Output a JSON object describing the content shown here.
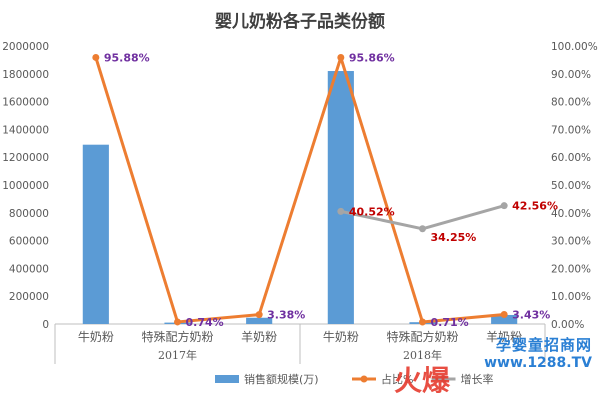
{
  "chart_data": {
    "type": "bar",
    "title": "婴儿奶粉各子品类份额",
    "groups": [
      {
        "label": "2017年",
        "categories": [
          "牛奶粉",
          "特殊配方奶粉",
          "羊奶粉"
        ]
      },
      {
        "label": "2018年",
        "categories": [
          "牛奶粉",
          "特殊配方奶粉",
          "羊奶粉"
        ]
      }
    ],
    "categories": [
      "牛奶粉",
      "特殊配方奶粉",
      "羊奶粉",
      "牛奶粉",
      "特殊配方奶粉",
      "羊奶粉"
    ],
    "series": [
      {
        "name": "销售额规模(万)",
        "kind": "bar",
        "axis": "left",
        "color": "#5b9bd5",
        "values": [
          1290000,
          10000,
          45000,
          1820000,
          13000,
          65000
        ]
      },
      {
        "name": "占比%",
        "kind": "line",
        "axis": "right",
        "color": "#ed7d31",
        "values": [
          95.88,
          0.74,
          3.38,
          95.86,
          0.71,
          3.43
        ],
        "labels": [
          "95.88%",
          "0.74%",
          "3.38%",
          "95.86%",
          "0.71%",
          "3.43%"
        ],
        "label_color": "#7030a0"
      },
      {
        "name": "增长率",
        "kind": "line",
        "axis": "right",
        "color": "#a5a5a5",
        "values": [
          null,
          null,
          null,
          40.52,
          34.25,
          42.56
        ],
        "labels": [
          null,
          null,
          null,
          "40.52%",
          "34.25%",
          "42.56%"
        ],
        "label_color": "#c00000"
      }
    ],
    "y_left": {
      "min": 0,
      "max": 2000000,
      "step": 200000,
      "ticks": [
        "0",
        "200000",
        "400000",
        "600000",
        "800000",
        "1000000",
        "1200000",
        "1400000",
        "1600000",
        "1800000",
        "2000000"
      ]
    },
    "y_right": {
      "min": 0,
      "max": 100,
      "step": 10,
      "ticks": [
        "0.00%",
        "10.00%",
        "20.00%",
        "30.00%",
        "40.00%",
        "50.00%",
        "60.00%",
        "70.00%",
        "80.00%",
        "90.00%",
        "100.00%"
      ]
    },
    "legend_position": "bottom",
    "grid": false
  },
  "watermark": {
    "logo_text": "火爆",
    "brand": "孕婴童招商网",
    "url": "www.1288.TV"
  }
}
